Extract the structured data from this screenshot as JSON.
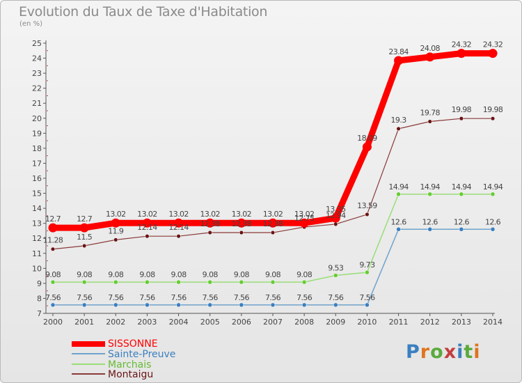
{
  "header": {
    "title": "Evolution du Taux de Taxe d'Habitation",
    "subtitle": "(en %)"
  },
  "logo": {
    "text": "Proxiti",
    "colors": [
      "#3a7fc0",
      "#e0741f",
      "#5aaa3c",
      "#c43e3e",
      "#3a7fc0",
      "#5aaa3c",
      "#e0741f"
    ]
  },
  "chart_data": {
    "type": "line",
    "x": [
      "2000",
      "2001",
      "2002",
      "2003",
      "2004",
      "2005",
      "2006",
      "2007",
      "2008",
      "2009",
      "2010",
      "2011",
      "2012",
      "2013",
      "2014"
    ],
    "ylim": [
      7,
      25
    ],
    "yticks": [
      7,
      8,
      9,
      10,
      11,
      12,
      13,
      14,
      15,
      16,
      17,
      18,
      19,
      20,
      21,
      22,
      23,
      24,
      25
    ],
    "grid": false,
    "legend_position": "bottom-left",
    "series": [
      {
        "name": "SISSONNE",
        "color": "#ff0000",
        "point_color": "#ff0000",
        "values": [
          12.7,
          12.7,
          13.02,
          13.02,
          13.02,
          13.02,
          13.02,
          13.02,
          13.02,
          13.35,
          18.09,
          23.84,
          24.08,
          24.32,
          24.32
        ],
        "labels": [
          "12.7",
          "12.7",
          "13.02",
          "13.02",
          "13.02",
          "13.02",
          "13.02",
          "13.02",
          "13.02",
          "13.35",
          "18.09",
          "23.84",
          "24.08",
          "24.32",
          "24.32"
        ]
      },
      {
        "name": "Sainte-Preuve",
        "color": "#6fa3cc",
        "point_color": "#3b7fbf",
        "values": [
          7.56,
          7.56,
          7.56,
          7.56,
          7.56,
          7.56,
          7.56,
          7.56,
          7.56,
          7.56,
          7.56,
          12.6,
          12.6,
          12.6,
          12.6
        ],
        "labels": [
          "7.56",
          "7.56",
          "7.56",
          "7.56",
          "7.56",
          "7.56",
          "7.56",
          "7.56",
          "7.56",
          "7.56",
          "7.56",
          "12.6",
          "12.6",
          "12.6",
          "12.6"
        ]
      },
      {
        "name": "Marchais",
        "color": "#99dd77",
        "point_color": "#66cc33",
        "values": [
          9.08,
          9.08,
          9.08,
          9.08,
          9.08,
          9.08,
          9.08,
          9.08,
          9.08,
          9.53,
          9.73,
          14.94,
          14.94,
          14.94,
          14.94
        ],
        "labels": [
          "9.08",
          "9.08",
          "9.08",
          "9.08",
          "9.08",
          "9.08",
          "9.08",
          "9.08",
          "9.08",
          "9.53",
          "9.73",
          "14.94",
          "14.94",
          "14.94",
          "14.94"
        ]
      },
      {
        "name": "Montaigu",
        "color": "#8b3a3a",
        "point_color": "#6a1414",
        "values": [
          11.28,
          11.5,
          11.9,
          12.14,
          12.14,
          12.38,
          12.38,
          12.38,
          12.75,
          12.94,
          13.59,
          19.3,
          19.78,
          19.98,
          19.98
        ],
        "labels": [
          "11.28",
          "11.5",
          "11.9",
          "12.14",
          "12.14",
          "12.38",
          "12.38",
          "12.38",
          "12.75",
          "12.94",
          "13.59",
          "19.3",
          "19.78",
          "19.98",
          "19.98"
        ]
      }
    ]
  }
}
